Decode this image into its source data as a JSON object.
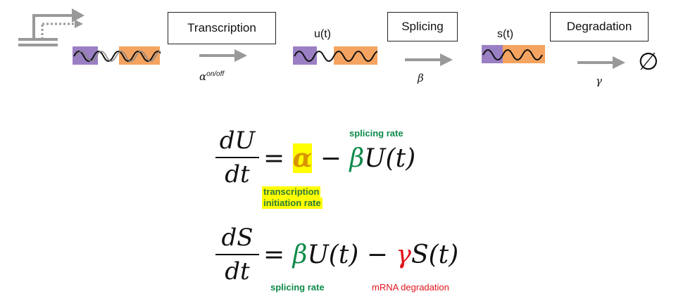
{
  "diagram": {
    "boxes": {
      "transcription": "Transcription",
      "splicing": "Splicing",
      "degradation": "Degradation"
    },
    "species": {
      "unspliced": "u(t)",
      "spliced": "s(t)",
      "degraded_symbol": "∅"
    },
    "rates": {
      "alpha": "α",
      "alpha_sup": "on/off",
      "beta": "β",
      "gamma": "γ"
    },
    "colors": {
      "exon1": "#9b7fc4",
      "exon2": "#f4a460",
      "arrow": "#999999",
      "splicing_green": "#0e8a4a",
      "degradation_red": "#e0151c",
      "highlight": "#ffff00"
    }
  },
  "equations": {
    "eq1": {
      "numerator": "dU",
      "denominator": "dt",
      "equals": "=",
      "alpha": "α",
      "minus": "−",
      "beta": "β",
      "term": "U(t)"
    },
    "eq2": {
      "numerator": "dS",
      "denominator": "dt",
      "equals": "=",
      "beta": "β",
      "term1": "U(t)",
      "minus": "−",
      "gamma": "γ",
      "term2": "S(t)"
    },
    "annotations": {
      "splicing_rate_top": "splicing rate",
      "transcription_line1": "transcription",
      "transcription_line2": "initiation rate",
      "splicing_rate_bottom": "splicing rate",
      "mrna_degradation": "mRNA degradation"
    }
  }
}
